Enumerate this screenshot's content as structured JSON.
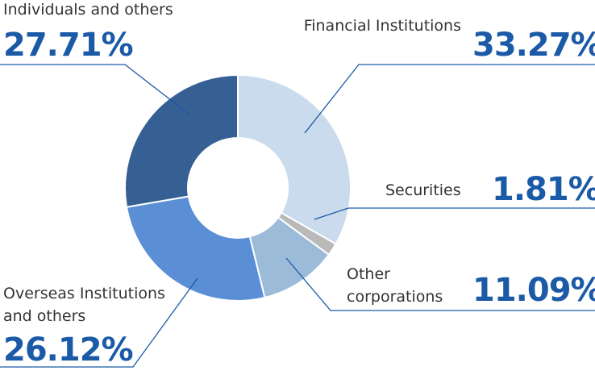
{
  "chart_data": {
    "type": "donut",
    "categories": [
      "Financial Institutions",
      "Securities",
      "Other corporations",
      "Overseas Institutions and others",
      "Individuals and others"
    ],
    "values": [
      33.27,
      1.81,
      11.09,
      26.12,
      27.71
    ],
    "value_labels": [
      "33.27%",
      "1.81%",
      "11.09%",
      "26.12%",
      "27.71%"
    ],
    "colors": [
      "#c9dbec",
      "#b9b9b9",
      "#9cbbd9",
      "#5a8fd6",
      "#365f93"
    ]
  }
}
